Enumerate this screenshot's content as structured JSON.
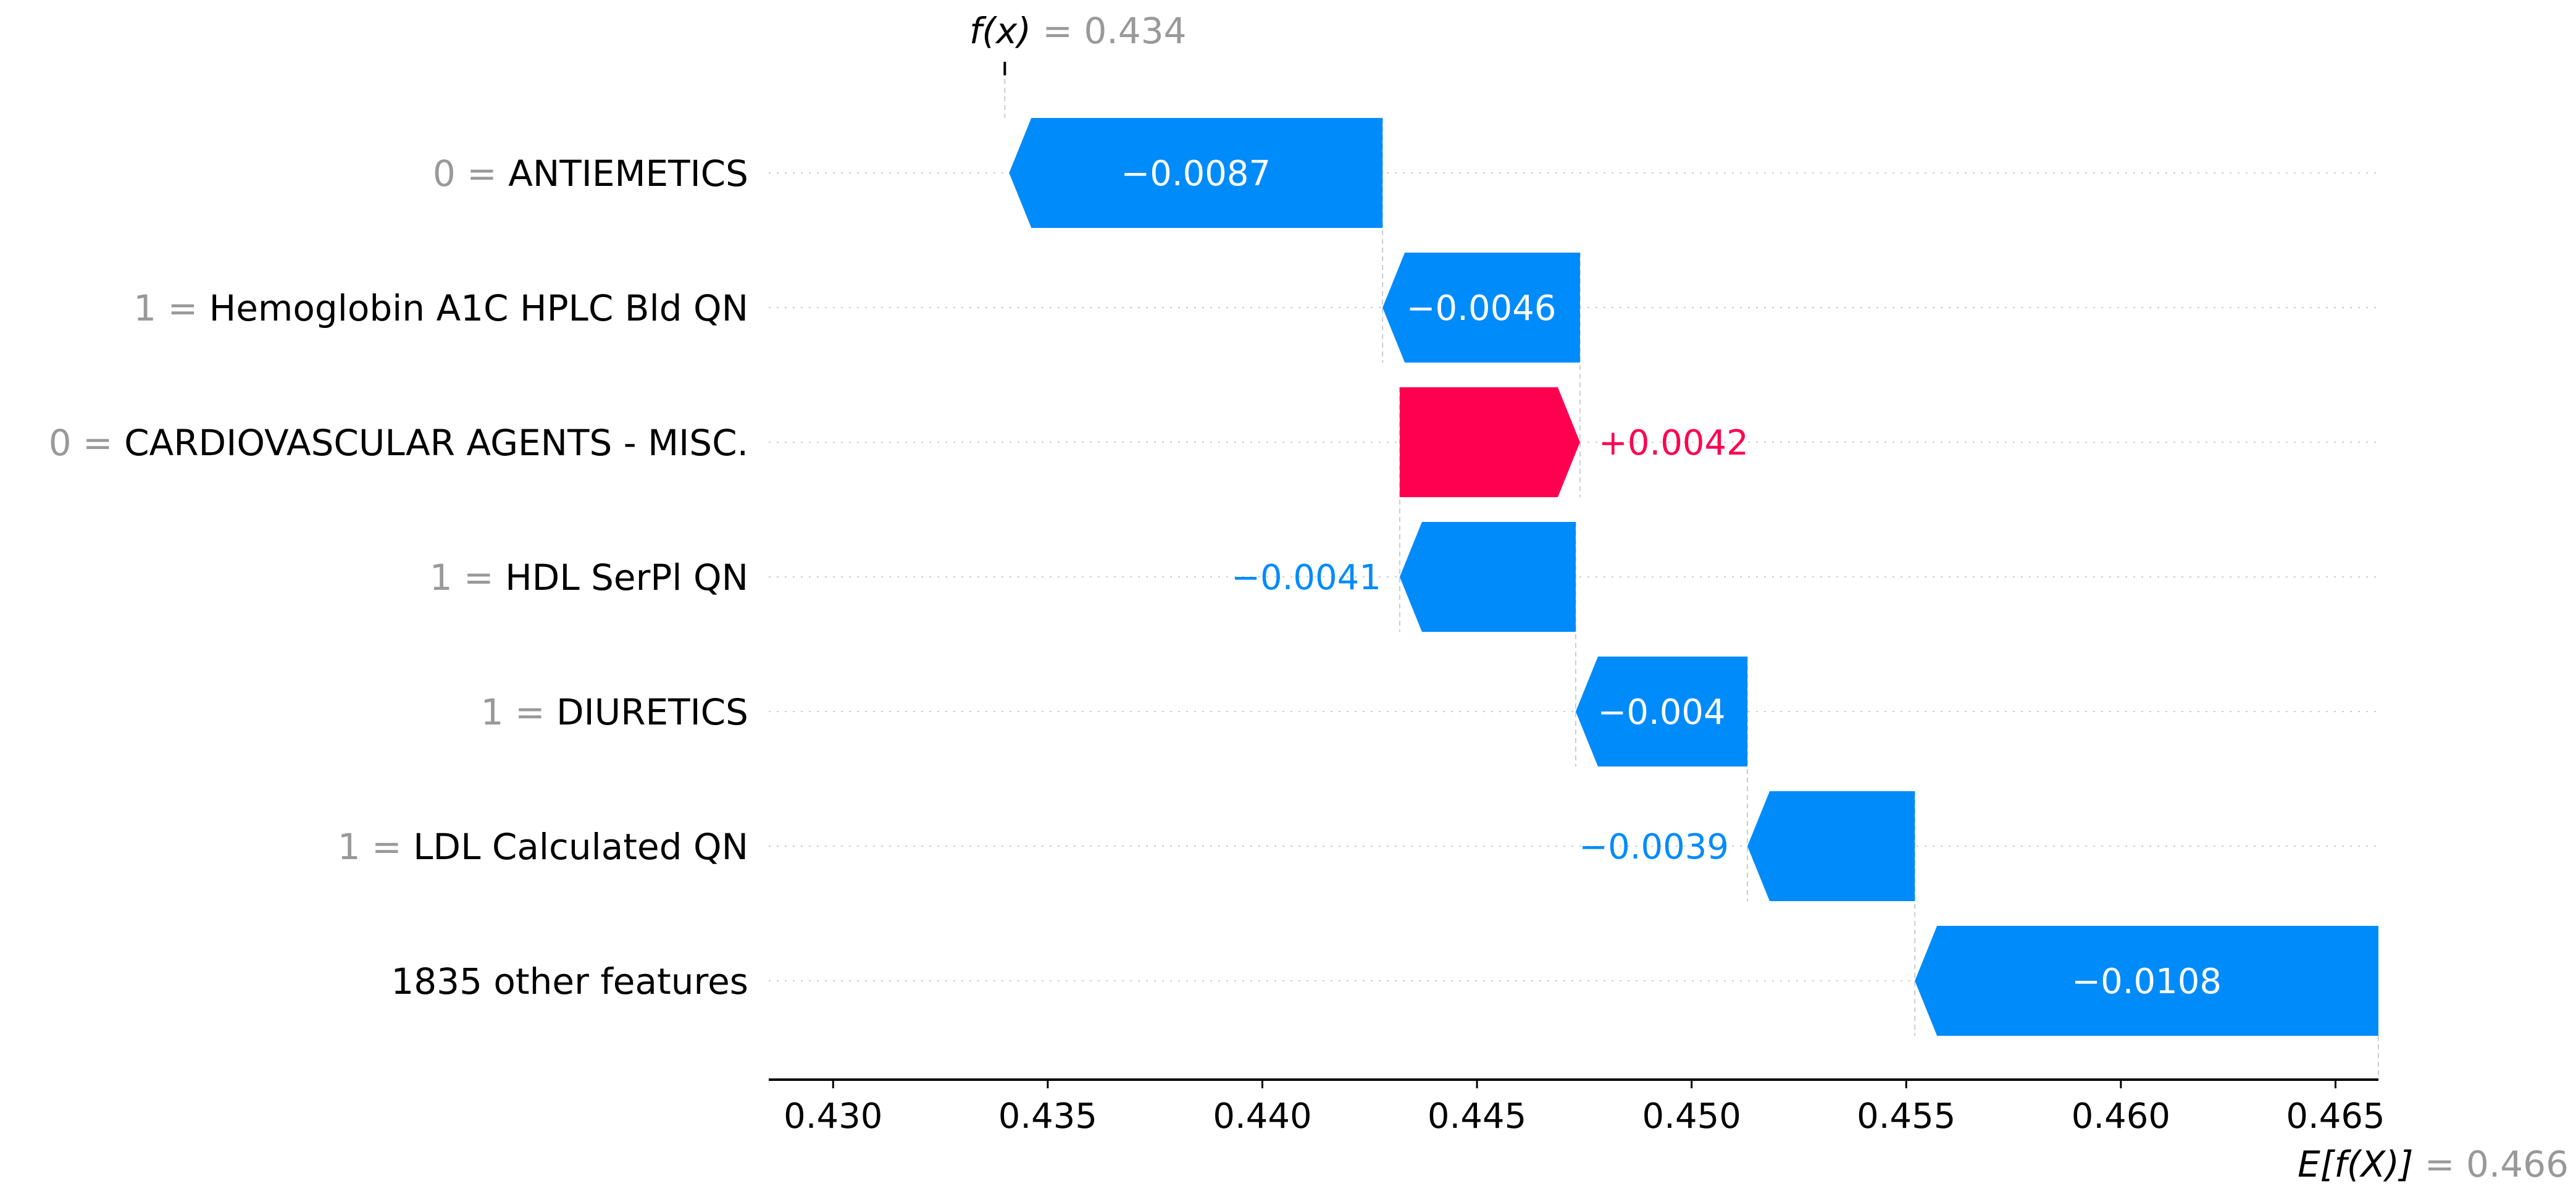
{
  "chart_data": {
    "type": "waterfall",
    "f_x": {
      "label": "f(x)",
      "eq": " = ",
      "value_text": "0.434",
      "value": 0.434
    },
    "e_fx": {
      "label": "E[f(X)]",
      "eq": " = ",
      "value_text": "0.466",
      "value": 0.466
    },
    "xlim": [
      0.4285,
      0.466
    ],
    "ticks": [
      0.43,
      0.435,
      0.44,
      0.445,
      0.45,
      0.455,
      0.46,
      0.465
    ],
    "tick_labels": [
      "0.430",
      "0.435",
      "0.440",
      "0.445",
      "0.450",
      "0.455",
      "0.460",
      "0.465"
    ],
    "colors": {
      "negative": "#008bfb",
      "positive": "#ff0051",
      "grid": "#cccccc",
      "muted": "#999999"
    },
    "features": [
      {
        "value": "0",
        "name": "ANTIEMETICS",
        "start": 0.4428,
        "end": 0.4341,
        "label": "−0.0087",
        "label_inside": true
      },
      {
        "value": "1",
        "name": "Hemoglobin A1C HPLC Bld QN",
        "start": 0.4474,
        "end": 0.4428,
        "label": "−0.0046",
        "label_inside": true
      },
      {
        "value": "0",
        "name": "CARDIOVASCULAR AGENTS - MISC.",
        "start": 0.4432,
        "end": 0.4474,
        "label": "+0.0042",
        "label_inside": false
      },
      {
        "value": "1",
        "name": "HDL SerPl QN",
        "start": 0.4473,
        "end": 0.4432,
        "label": "−0.0041",
        "label_inside": false
      },
      {
        "value": "1",
        "name": "DIURETICS",
        "start": 0.4513,
        "end": 0.4473,
        "label": "−0.004",
        "label_inside": true
      },
      {
        "value": "1",
        "name": "LDL Calculated QN",
        "start": 0.4552,
        "end": 0.4513,
        "label": "−0.0039",
        "label_inside": false
      },
      {
        "value": "",
        "name": "1835 other features",
        "start": 0.466,
        "end": 0.4552,
        "label": "−0.0108",
        "label_inside": true
      }
    ]
  }
}
